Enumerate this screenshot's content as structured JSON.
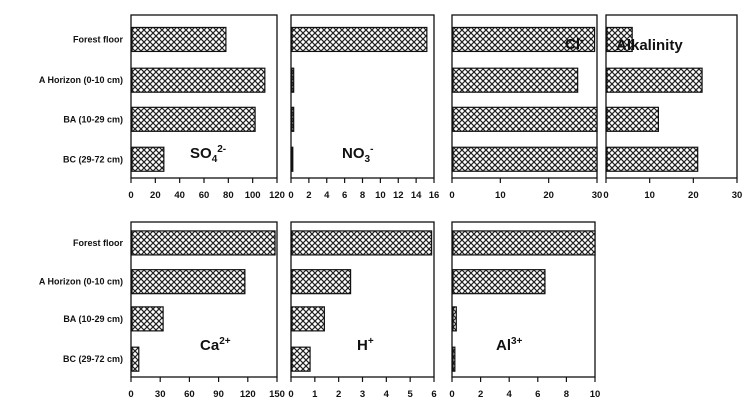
{
  "chart_data": [
    {
      "type": "bar",
      "orientation": "horizontal",
      "label": {
        "base": "SO",
        "sub": "4",
        "sup": "2-"
      },
      "categories": [
        "Forest floor",
        "A Horizon (0-10 cm)",
        "BA (10-29 cm)",
        "BC (29-72 cm)"
      ],
      "values": [
        78,
        110,
        102,
        27
      ],
      "xlim": [
        0,
        120
      ],
      "ticks": [
        "0",
        "20",
        "40",
        "60",
        "80",
        "100",
        "120"
      ]
    },
    {
      "type": "bar",
      "orientation": "horizontal",
      "label": {
        "base": "NO",
        "sub": "3",
        "sup": "-"
      },
      "categories": [
        "Forest floor",
        "A Horizon (0-10 cm)",
        "BA (10-29 cm)",
        "BC (29-72 cm)"
      ],
      "values": [
        15.2,
        0.3,
        0.3,
        0.2
      ],
      "xlim": [
        0,
        16
      ],
      "ticks": [
        "0",
        "2",
        "4",
        "6",
        "8",
        "10",
        "12",
        "14",
        "16"
      ]
    },
    {
      "type": "bar",
      "orientation": "horizontal",
      "label": {
        "base": "Cl",
        "sub": "",
        "sup": "-"
      },
      "categories": [
        "Forest floor",
        "A Horizon (0-10 cm)",
        "BA (10-29 cm)",
        "BC (29-72 cm)"
      ],
      "values": [
        29.5,
        26,
        30,
        30
      ],
      "xlim": [
        0,
        30
      ],
      "ticks": [
        "0",
        "10",
        "20",
        "30"
      ]
    },
    {
      "type": "bar",
      "orientation": "horizontal",
      "label": {
        "base": "Alkalinity",
        "sub": "",
        "sup": ""
      },
      "categories": [
        "Forest floor",
        "A Horizon (0-10 cm)",
        "BA (10-29 cm)",
        "BC (29-72 cm)"
      ],
      "values": [
        6,
        22,
        12,
        21
      ],
      "xlim": [
        0,
        30
      ],
      "ticks": [
        "0",
        "10",
        "20",
        "30"
      ]
    },
    {
      "type": "bar",
      "orientation": "horizontal",
      "label": {
        "base": "Ca",
        "sub": "",
        "sup": "2+"
      },
      "categories": [
        "Forest floor",
        "A Horizon (0-10 cm)",
        "BA (10-29 cm)",
        "BC (29-72 cm)"
      ],
      "values": [
        148,
        117,
        33,
        8
      ],
      "xlim": [
        0,
        150
      ],
      "ticks": [
        "0",
        "30",
        "60",
        "90",
        "120",
        "150"
      ]
    },
    {
      "type": "bar",
      "orientation": "horizontal",
      "label": {
        "base": "H",
        "sub": "",
        "sup": "+"
      },
      "categories": [
        "Forest floor",
        "A Horizon (0-10 cm)",
        "BA (10-29 cm)",
        "BC (29-72 cm)"
      ],
      "values": [
        5.9,
        2.5,
        1.4,
        0.8
      ],
      "xlim": [
        0,
        6
      ],
      "ticks": [
        "0",
        "1",
        "2",
        "3",
        "4",
        "5",
        "6"
      ]
    },
    {
      "type": "bar",
      "orientation": "horizontal",
      "label": {
        "base": "Al",
        "sub": "",
        "sup": "3+"
      },
      "categories": [
        "Forest floor",
        "A Horizon (0-10 cm)",
        "BA (10-29 cm)",
        "BC (29-72 cm)"
      ],
      "values": [
        10,
        6.5,
        0.3,
        0.2
      ],
      "xlim": [
        0,
        10
      ],
      "ticks": [
        "0",
        "2",
        "4",
        "6",
        "8",
        "10"
      ]
    }
  ]
}
